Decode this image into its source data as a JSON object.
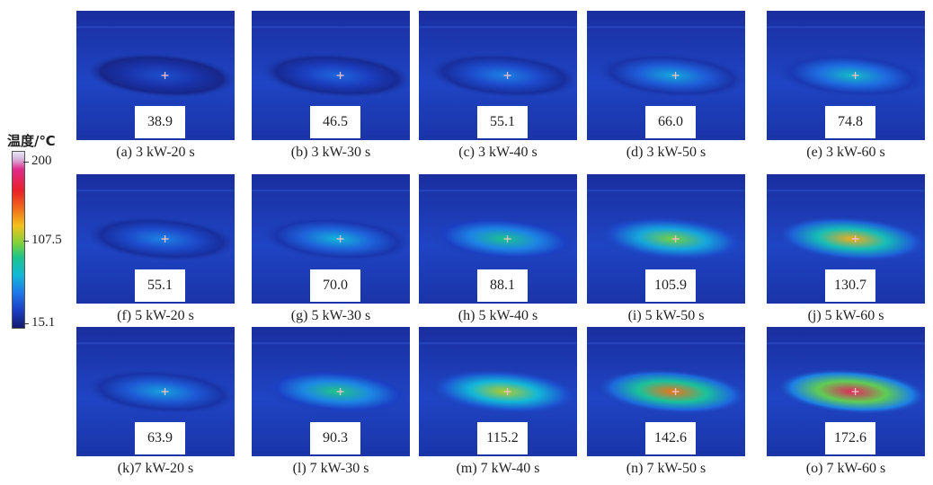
{
  "legend": {
    "title": "温度/℃",
    "max_label": "200",
    "mid_label": "107.5",
    "min_label": "15.1",
    "min_value": 15.1,
    "max_value": 200,
    "colormap": [
      "#e6e6f2",
      "#e02a8a",
      "#e8202a",
      "#f06a1a",
      "#f3c21c",
      "#7ed13a",
      "#1cc48a",
      "#12b8d8",
      "#1f78e8",
      "#1c3fc4",
      "#141a6e"
    ]
  },
  "panels": [
    {
      "id": "a",
      "temp": "38.9",
      "value": 38.9,
      "caption": "(a) 3 kW-20 s"
    },
    {
      "id": "b",
      "temp": "46.5",
      "value": 46.5,
      "caption": "(b) 3 kW-30 s"
    },
    {
      "id": "c",
      "temp": "55.1",
      "value": 55.1,
      "caption": "(c) 3 kW-40 s"
    },
    {
      "id": "d",
      "temp": "66.0",
      "value": 66.0,
      "caption": "(d) 3 kW-50 s"
    },
    {
      "id": "e",
      "temp": "74.8",
      "value": 74.8,
      "caption": "(e) 3 kW-60 s"
    },
    {
      "id": "f",
      "temp": "55.1",
      "value": 55.1,
      "caption": "(f) 5 kW-20 s"
    },
    {
      "id": "g",
      "temp": "70.0",
      "value": 70.0,
      "caption": "(g) 5 kW-30 s"
    },
    {
      "id": "h",
      "temp": "88.1",
      "value": 88.1,
      "caption": "(h) 5 kW-40 s"
    },
    {
      "id": "i",
      "temp": "105.9",
      "value": 105.9,
      "caption": "(i) 5 kW-50 s"
    },
    {
      "id": "j",
      "temp": "130.7",
      "value": 130.7,
      "caption": "(j) 5 kW-60 s"
    },
    {
      "id": "k",
      "temp": "63.9",
      "value": 63.9,
      "caption": "(k)7 kW-20 s"
    },
    {
      "id": "l",
      "temp": "90.3",
      "value": 90.3,
      "caption": "(l) 7 kW-30 s"
    },
    {
      "id": "m",
      "temp": "115.2",
      "value": 115.2,
      "caption": "(m) 7 kW-40 s"
    },
    {
      "id": "n",
      "temp": "142.6",
      "value": 142.6,
      "caption": "(n) 7 kW-50 s"
    },
    {
      "id": "o",
      "temp": "172.6",
      "value": 172.6,
      "caption": "(o) 7 kW-60 s"
    }
  ]
}
